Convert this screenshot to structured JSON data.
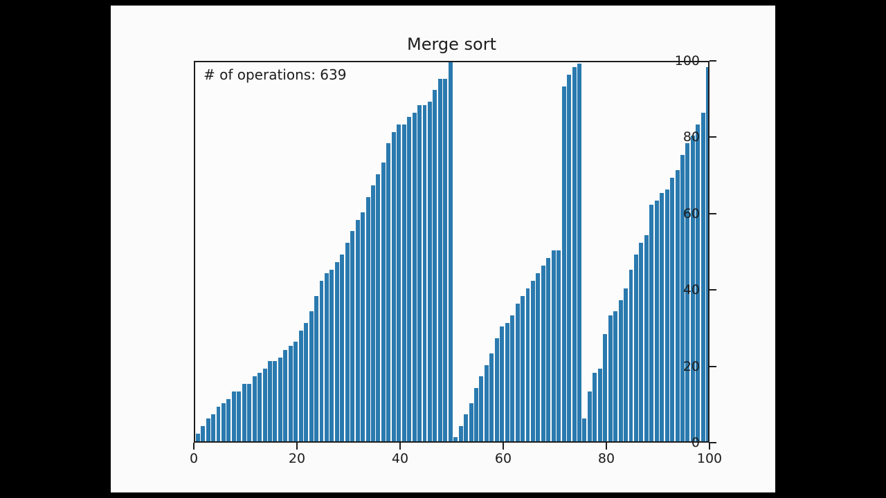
{
  "frame": {
    "background_color": "#000000",
    "figure_background_color": "#fbfbfb"
  },
  "chart_data": {
    "type": "bar",
    "title": "Merge sort",
    "annotation": "# of operations: 639",
    "operations_count": 639,
    "bar_color": "#2a7aaf",
    "xlim": [
      0,
      100
    ],
    "ylim": [
      0,
      100
    ],
    "x_ticks": [
      0,
      20,
      40,
      60,
      80,
      100
    ],
    "y_ticks": [
      0,
      20,
      40,
      60,
      80,
      100
    ],
    "grid": false,
    "legend": "none",
    "values": [
      2,
      4,
      6,
      7,
      9,
      10,
      11,
      13,
      13,
      15,
      15,
      17,
      18,
      19,
      21,
      21,
      22,
      24,
      25,
      26,
      29,
      31,
      34,
      38,
      42,
      44,
      45,
      47,
      49,
      52,
      55,
      58,
      60,
      64,
      67,
      70,
      73,
      78,
      81,
      83,
      83,
      85,
      86,
      88,
      88,
      89,
      92,
      95,
      95,
      100,
      1,
      4,
      7,
      10,
      14,
      17,
      20,
      23,
      27,
      30,
      31,
      33,
      36,
      38,
      40,
      42,
      44,
      46,
      48,
      50,
      50,
      93,
      96,
      98,
      99,
      6,
      13,
      18,
      19,
      28,
      33,
      34,
      37,
      40,
      45,
      49,
      52,
      54,
      62,
      63,
      65,
      66,
      69,
      71,
      75,
      78,
      80,
      83,
      86,
      98
    ]
  }
}
